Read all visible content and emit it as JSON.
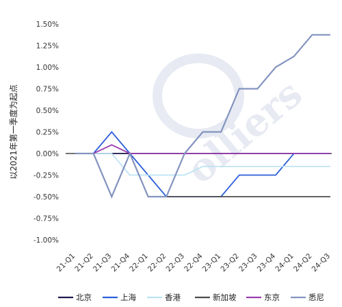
{
  "chart_data": {
    "type": "line",
    "ylabel": "以2021年第一季度为起点",
    "y_unit": "%",
    "ylim": [
      -1.0,
      1.5
    ],
    "y_ticks": [
      "1.50%",
      "1.25%",
      "1.00%",
      "0.75%",
      "0.50%",
      "0.25%",
      "0.00%",
      "-0.25%",
      "-0.50%",
      "-0.75%",
      "-1.00%"
    ],
    "categories": [
      "21-Q1",
      "21-Q2",
      "21-Q3",
      "21-Q4",
      "22-Q1",
      "22-Q2",
      "22-Q3",
      "22-Q4",
      "23-Q1",
      "23-Q2",
      "23-Q3",
      "23-Q4",
      "24-Q1",
      "24-Q2",
      "24-Q3"
    ],
    "grid": false,
    "legend_position": "bottom",
    "series": [
      {
        "name": "北京",
        "color": "#1f1a4d",
        "values": [
          0,
          0,
          0,
          0,
          0,
          0,
          0,
          0,
          0,
          0,
          0,
          0,
          0,
          0,
          0
        ]
      },
      {
        "name": "上海",
        "color": "#2b5fd9",
        "values": [
          0,
          0,
          0.25,
          0,
          -0.25,
          -0.5,
          -0.5,
          -0.5,
          -0.5,
          -0.25,
          -0.25,
          -0.25,
          0,
          0,
          0
        ]
      },
      {
        "name": "香港",
        "color": "#bde3f5",
        "values": [
          0,
          0,
          0,
          -0.25,
          -0.25,
          -0.25,
          -0.25,
          -0.15,
          -0.15,
          -0.15,
          -0.15,
          -0.15,
          -0.15,
          -0.15,
          -0.15
        ]
      },
      {
        "name": "新加坡",
        "color": "#4d4d4d",
        "values": [
          0,
          0,
          -0.5,
          0,
          -0.5,
          -0.5,
          -0.5,
          -0.5,
          -0.5,
          -0.5,
          -0.5,
          -0.5,
          -0.5,
          -0.5,
          -0.5
        ]
      },
      {
        "name": "东京",
        "color": "#9b3fb0",
        "values": [
          0,
          0,
          0.1,
          0,
          0,
          0,
          0,
          0,
          0,
          0,
          0,
          0,
          0,
          0,
          0
        ]
      },
      {
        "name": "悉尼",
        "color": "#8494c0",
        "values": [
          0,
          0,
          -0.5,
          0,
          -0.5,
          -0.5,
          0,
          0.25,
          0.25,
          0.75,
          0.75,
          1.0,
          1.125,
          1.375,
          1.375
        ]
      }
    ]
  }
}
